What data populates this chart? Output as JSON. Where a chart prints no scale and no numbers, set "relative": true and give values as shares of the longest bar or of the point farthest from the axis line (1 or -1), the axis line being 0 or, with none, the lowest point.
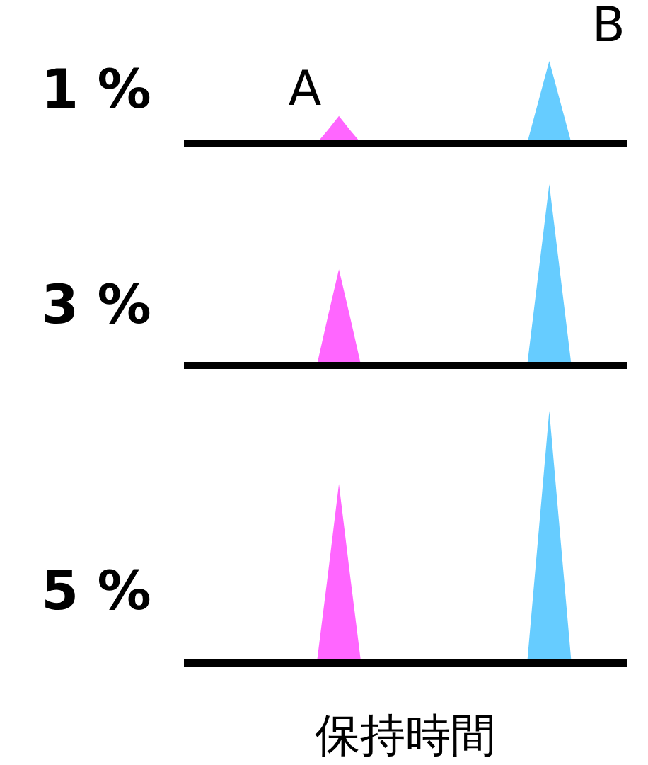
{
  "chart_data": [
    {
      "type": "area",
      "relative": true,
      "ylabel": "1 %",
      "categories": [
        null,
        null,
        null,
        null,
        null,
        null,
        null,
        null,
        null,
        null,
        null,
        null,
        null,
        null,
        null,
        null,
        null,
        null,
        null,
        null,
        null,
        null,
        null,
        null,
        null,
        null,
        null,
        null,
        null,
        null,
        null,
        null,
        null,
        null,
        null,
        null,
        null,
        null,
        null,
        null,
        null
      ],
      "series": [
        {
          "name": "A",
          "color": "#ff66ff",
          "values": [
            0,
            0,
            0,
            0,
            0,
            0,
            0,
            0,
            0,
            0,
            0,
            0,
            0,
            0.16,
            0.33,
            0.16,
            0,
            0,
            0,
            0,
            0,
            0,
            0,
            0,
            0,
            0,
            0,
            0,
            0,
            0,
            0,
            0,
            0,
            0,
            0,
            0,
            0,
            0,
            0,
            0,
            0
          ]
        },
        {
          "name": "B",
          "color": "#66ccff",
          "values": [
            0,
            0,
            0,
            0,
            0,
            0,
            0,
            0,
            0,
            0,
            0,
            0,
            0,
            0,
            0,
            0,
            0,
            0,
            0,
            0,
            0,
            0,
            0,
            0,
            0,
            0,
            0,
            0,
            0,
            0,
            0,
            0,
            0.5,
            1,
            0.5,
            0,
            0,
            0,
            0,
            0,
            0
          ]
        }
      ]
    },
    {
      "type": "area",
      "relative": true,
      "ylabel": "3 %",
      "categories": [
        null,
        null,
        null,
        null,
        null,
        null,
        null,
        null,
        null,
        null,
        null,
        null,
        null,
        null,
        null,
        null,
        null,
        null,
        null,
        null,
        null,
        null,
        null,
        null,
        null,
        null,
        null,
        null,
        null,
        null,
        null,
        null,
        null,
        null,
        null,
        null,
        null,
        null,
        null,
        null,
        null
      ],
      "series": [
        {
          "color": "#ff66ff",
          "values": [
            0,
            0,
            0,
            0,
            0,
            0,
            0,
            0,
            0,
            0,
            0,
            0,
            0,
            0.27,
            0.53,
            0.27,
            0,
            0,
            0,
            0,
            0,
            0,
            0,
            0,
            0,
            0,
            0,
            0,
            0,
            0,
            0,
            0,
            0,
            0,
            0,
            0,
            0,
            0,
            0,
            0,
            0
          ]
        },
        {
          "color": "#66ccff",
          "values": [
            0,
            0,
            0,
            0,
            0,
            0,
            0,
            0,
            0,
            0,
            0,
            0,
            0,
            0,
            0,
            0,
            0,
            0,
            0,
            0,
            0,
            0,
            0,
            0,
            0,
            0,
            0,
            0,
            0,
            0,
            0,
            0,
            0.5,
            1,
            0.5,
            0,
            0,
            0,
            0,
            0,
            0
          ]
        }
      ]
    },
    {
      "type": "area",
      "relative": true,
      "ylabel": "5 %",
      "xlabel": "保持時間",
      "categories": [
        null,
        null,
        null,
        null,
        null,
        null,
        null,
        null,
        null,
        null,
        null,
        null,
        null,
        null,
        null,
        null,
        null,
        null,
        null,
        null,
        null,
        null,
        null,
        null,
        null,
        null,
        null,
        null,
        null,
        null,
        null,
        null,
        null,
        null,
        null,
        null,
        null,
        null,
        null,
        null,
        null
      ],
      "series": [
        {
          "color": "#ff66ff",
          "values": [
            0,
            0,
            0,
            0,
            0,
            0,
            0,
            0,
            0,
            0,
            0,
            0,
            0,
            0.35,
            0.71,
            0.35,
            0,
            0,
            0,
            0,
            0,
            0,
            0,
            0,
            0,
            0,
            0,
            0,
            0,
            0,
            0,
            0,
            0,
            0,
            0,
            0,
            0,
            0,
            0,
            0,
            0
          ]
        },
        {
          "color": "#66ccff",
          "values": [
            0,
            0,
            0,
            0,
            0,
            0,
            0,
            0,
            0,
            0,
            0,
            0,
            0,
            0,
            0,
            0,
            0,
            0,
            0,
            0,
            0,
            0,
            0,
            0,
            0,
            0,
            0,
            0,
            0,
            0,
            0,
            0,
            0.5,
            1,
            0.5,
            0,
            0,
            0,
            0,
            0,
            0
          ]
        }
      ]
    }
  ]
}
